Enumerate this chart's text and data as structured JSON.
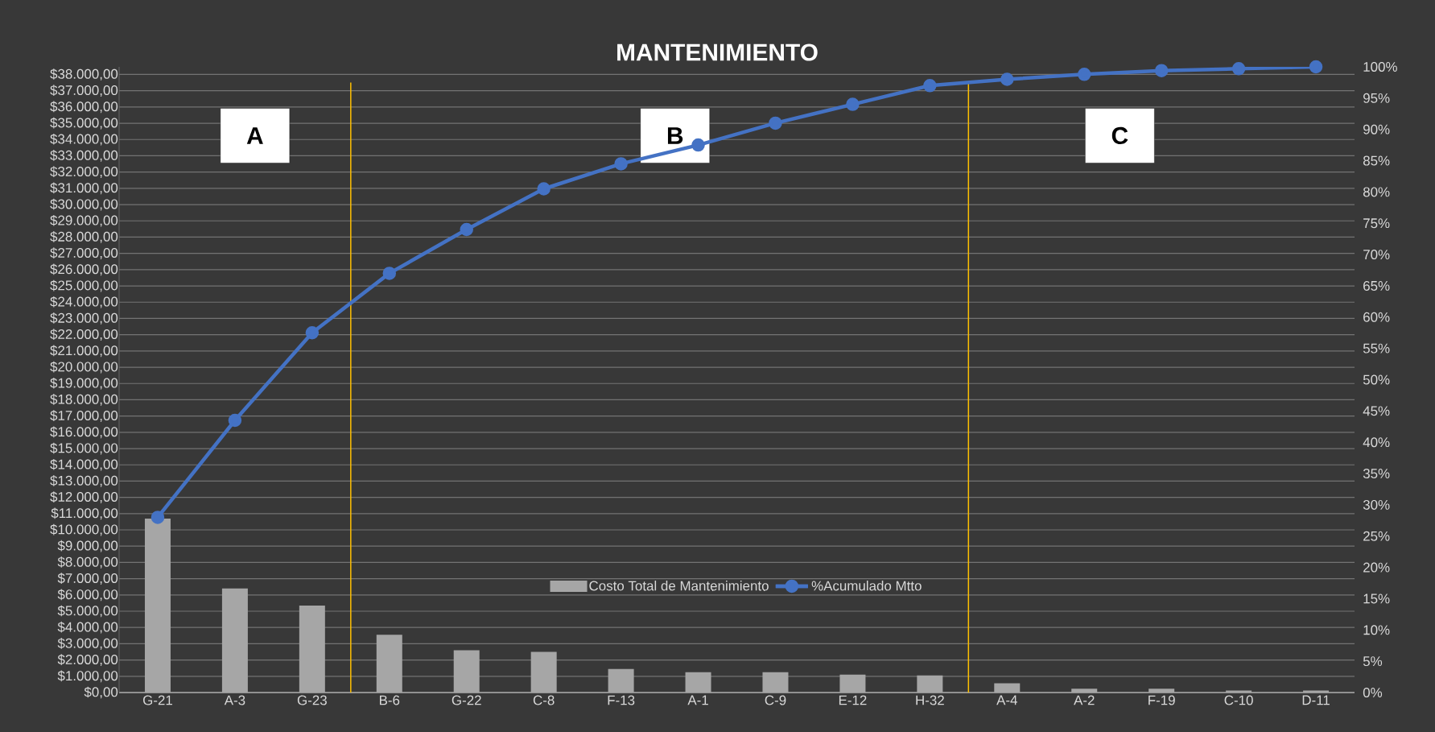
{
  "chart_data": {
    "type": "bar",
    "title": "MANTENIMIENTO",
    "categories": [
      "G-21",
      "A-3",
      "G-23",
      "B-6",
      "G-22",
      "C-8",
      "F-13",
      "A-1",
      "C-9",
      "E-12",
      "H-32",
      "A-4",
      "A-2",
      "F-19",
      "C-10",
      "D-11"
    ],
    "series": [
      {
        "name": "Costo Total de Mantenimiento",
        "color": "#a6a6a6",
        "values": [
          10700,
          6400,
          5350,
          3550,
          2600,
          2500,
          1450,
          1250,
          1250,
          1100,
          1050,
          570,
          230,
          230,
          120,
          120
        ]
      },
      {
        "name": "%Acumulado Mtto",
        "type": "line",
        "axis": "y2",
        "color": "#4472c4",
        "marker": "circle",
        "values": [
          28,
          43.5,
          57.5,
          67,
          74,
          80.5,
          84.5,
          87.5,
          91,
          94,
          97,
          98,
          98.8,
          99.4,
          99.7,
          100
        ]
      }
    ],
    "ylim": [
      0,
      38470
    ],
    "yticks": [
      {
        "value": 0,
        "label": "$0,00"
      },
      {
        "value": 1000,
        "label": "$1.000,00"
      },
      {
        "value": 2000,
        "label": "$2.000,00"
      },
      {
        "value": 3000,
        "label": "$3.000,00"
      },
      {
        "value": 4000,
        "label": "$4.000,00"
      },
      {
        "value": 5000,
        "label": "$5.000,00"
      },
      {
        "value": 6000,
        "label": "$6.000,00"
      },
      {
        "value": 7000,
        "label": "$7.000,00"
      },
      {
        "value": 8000,
        "label": "$8.000,00"
      },
      {
        "value": 9000,
        "label": "$9.000,00"
      },
      {
        "value": 10000,
        "label": "$10.000,00"
      },
      {
        "value": 11000,
        "label": "$11.000,00"
      },
      {
        "value": 12000,
        "label": "$12.000,00"
      },
      {
        "value": 13000,
        "label": "$13.000,00"
      },
      {
        "value": 14000,
        "label": "$14.000,00"
      },
      {
        "value": 15000,
        "label": "$15.000,00"
      },
      {
        "value": 16000,
        "label": "$16.000,00"
      },
      {
        "value": 17000,
        "label": "$17.000,00"
      },
      {
        "value": 18000,
        "label": "$18.000,00"
      },
      {
        "value": 19000,
        "label": "$19.000,00"
      },
      {
        "value": 20000,
        "label": "$20.000,00"
      },
      {
        "value": 21000,
        "label": "$21.000,00"
      },
      {
        "value": 22000,
        "label": "$22.000,00"
      },
      {
        "value": 23000,
        "label": "$23.000,00"
      },
      {
        "value": 24000,
        "label": "$24.000,00"
      },
      {
        "value": 25000,
        "label": "$25.000,00"
      },
      {
        "value": 26000,
        "label": "$26.000,00"
      },
      {
        "value": 27000,
        "label": "$27.000,00"
      },
      {
        "value": 28000,
        "label": "$28.000,00"
      },
      {
        "value": 29000,
        "label": "$29.000,00"
      },
      {
        "value": 30000,
        "label": "$30.000,00"
      },
      {
        "value": 31000,
        "label": "$31.000,00"
      },
      {
        "value": 32000,
        "label": "$32.000,00"
      },
      {
        "value": 33000,
        "label": "$33.000,00"
      },
      {
        "value": 34000,
        "label": "$34.000,00"
      },
      {
        "value": 35000,
        "label": "$35.000,00"
      },
      {
        "value": 36000,
        "label": "$36.000,00"
      },
      {
        "value": 37000,
        "label": "$37.000,00"
      },
      {
        "value": 38000,
        "label": "$38.000,00"
      }
    ],
    "y2lim": [
      0,
      100
    ],
    "y2ticks": [
      {
        "value": 0,
        "label": "0%"
      },
      {
        "value": 5,
        "label": "5%"
      },
      {
        "value": 10,
        "label": "10%"
      },
      {
        "value": 15,
        "label": "15%"
      },
      {
        "value": 20,
        "label": "20%"
      },
      {
        "value": 25,
        "label": "25%"
      },
      {
        "value": 30,
        "label": "30%"
      },
      {
        "value": 35,
        "label": "35%"
      },
      {
        "value": 40,
        "label": "40%"
      },
      {
        "value": 45,
        "label": "45%"
      },
      {
        "value": 50,
        "label": "50%"
      },
      {
        "value": 55,
        "label": "55%"
      },
      {
        "value": 60,
        "label": "60%"
      },
      {
        "value": 65,
        "label": "65%"
      },
      {
        "value": 70,
        "label": "70%"
      },
      {
        "value": 75,
        "label": "75%"
      },
      {
        "value": 80,
        "label": "80%"
      },
      {
        "value": 85,
        "label": "85%"
      },
      {
        "value": 90,
        "label": "90%"
      },
      {
        "value": 95,
        "label": "95%"
      },
      {
        "value": 100,
        "label": "100%"
      }
    ],
    "annotations": [
      "A",
      "B",
      "C"
    ],
    "grid": "y",
    "legend": "bottom"
  }
}
